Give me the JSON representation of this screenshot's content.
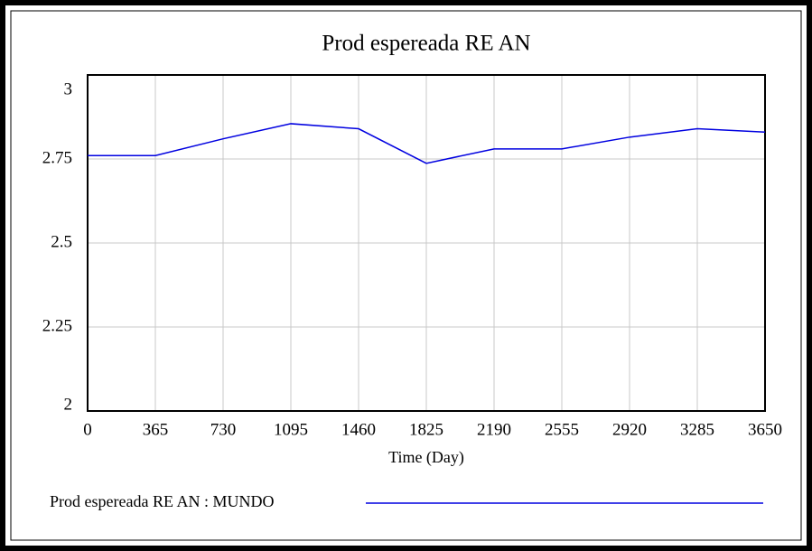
{
  "chart_data": {
    "type": "line",
    "title": "Prod espereada RE AN",
    "x_label": "Time (Day)",
    "x": [
      0,
      365,
      730,
      1095,
      1460,
      1825,
      2190,
      2555,
      2920,
      3285,
      3650
    ],
    "series": [
      {
        "name": "Prod espereada RE AN : MUNDO",
        "color": "#0000e0",
        "values": [
          2.76,
          2.76,
          2.81,
          2.855,
          2.84,
          2.737,
          2.78,
          2.78,
          2.815,
          2.84,
          2.83
        ]
      }
    ],
    "xlim": [
      0,
      3650
    ],
    "xticks": [
      0,
      365,
      730,
      1095,
      1460,
      1825,
      2190,
      2555,
      2920,
      3285,
      3650
    ],
    "ylim": [
      2,
      3
    ],
    "yticks": [
      2,
      2.25,
      2.5,
      2.75,
      3
    ],
    "grid": true,
    "legend": "bottom"
  }
}
